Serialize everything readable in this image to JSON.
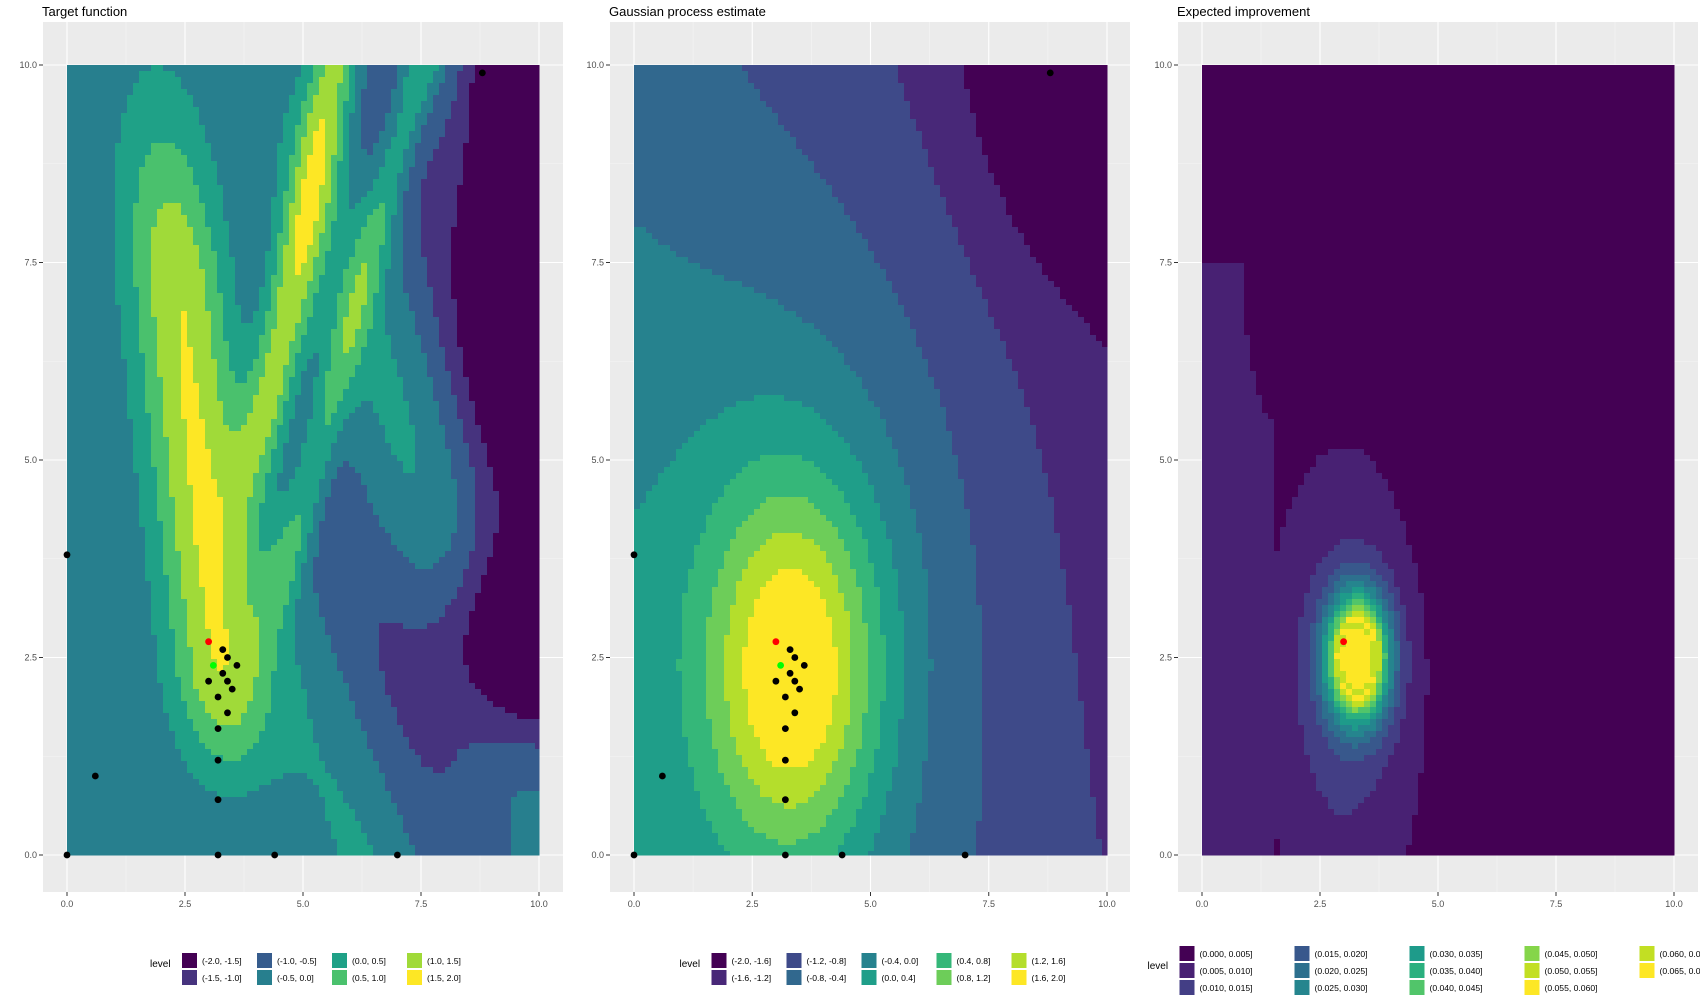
{
  "colors": {
    "panel_bg": "#EBEBEB",
    "grid_major": "#FFFFFF",
    "axis_text": "#4D4D4D",
    "point_black": "#000000",
    "point_red": "#FF0000",
    "point_green": "#00FF00"
  },
  "chart_data": [
    {
      "type": "contour",
      "title": "Target function",
      "xlim": [
        0,
        10
      ],
      "ylim": [
        0,
        10
      ],
      "x_ticks": [
        "0.0",
        "2.5",
        "5.0",
        "7.5",
        "10.0"
      ],
      "y_ticks": [
        "0.0",
        "2.5",
        "5.0",
        "7.5",
        "10.0"
      ],
      "legend_title": "level",
      "legend": [
        {
          "label": "(-2.0, -1.5]",
          "color": "#440154"
        },
        {
          "label": "(-1.5, -1.0]",
          "color": "#46337E"
        },
        {
          "label": "(-1.0, -0.5]",
          "color": "#365C8D"
        },
        {
          "label": "(-0.5, 0.0]",
          "color": "#277F8E"
        },
        {
          "label": "(0.0, 0.5]",
          "color": "#1FA187"
        },
        {
          "label": "(0.5, 1.0]",
          "color": "#4AC16D"
        },
        {
          "label": "(1.0, 1.5]",
          "color": "#A0DA39"
        },
        {
          "label": "(1.5, 2.0]",
          "color": "#FDE725"
        }
      ],
      "legend_rows": 2,
      "field": "target",
      "points": [
        [
          0,
          3.8
        ],
        [
          0.6,
          1.0
        ],
        [
          0,
          0
        ],
        [
          3.2,
          0
        ],
        [
          4.4,
          0
        ],
        [
          7.0,
          0
        ],
        [
          8.8,
          9.9
        ],
        [
          3.2,
          0.7
        ],
        [
          3.2,
          1.2
        ],
        [
          3.2,
          1.6
        ],
        [
          3.4,
          1.8
        ],
        [
          3.2,
          2.0
        ],
        [
          3.0,
          2.2
        ],
        [
          3.3,
          2.3
        ],
        [
          3.5,
          2.1
        ],
        [
          3.4,
          2.2
        ],
        [
          3.6,
          2.4
        ],
        [
          3.4,
          2.5
        ],
        [
          3.3,
          2.6
        ]
      ],
      "best_point": [
        3.0,
        2.7
      ],
      "current_point": [
        3.1,
        2.4
      ]
    },
    {
      "type": "contour",
      "title": "Gaussian process estimate",
      "xlim": [
        0,
        10
      ],
      "ylim": [
        0,
        10
      ],
      "x_ticks": [
        "0.0",
        "2.5",
        "5.0",
        "7.5",
        "10.0"
      ],
      "y_ticks": [
        "0.0",
        "2.5",
        "5.0",
        "7.5",
        "10.0"
      ],
      "legend_title": "level",
      "legend": [
        {
          "label": "(-2.0, -1.6]",
          "color": "#440154"
        },
        {
          "label": "(-1.6, -1.2]",
          "color": "#482878"
        },
        {
          "label": "(-1.2, -0.8]",
          "color": "#3E4A89"
        },
        {
          "label": "(-0.8, -0.4]",
          "color": "#31688E"
        },
        {
          "label": "(-0.4, 0.0]",
          "color": "#26828E"
        },
        {
          "label": "(0.0, 0.4]",
          "color": "#1F9E89"
        },
        {
          "label": "(0.4, 0.8]",
          "color": "#35B779"
        },
        {
          "label": "(0.8, 1.2]",
          "color": "#6DCD59"
        },
        {
          "label": "(1.2, 1.6]",
          "color": "#B4DE2C"
        },
        {
          "label": "(1.6, 2.0]",
          "color": "#FDE725"
        }
      ],
      "legend_rows": 2,
      "field": "gp",
      "points": [
        [
          0,
          3.8
        ],
        [
          0.6,
          1.0
        ],
        [
          0,
          0
        ],
        [
          3.2,
          0
        ],
        [
          4.4,
          0
        ],
        [
          7.0,
          0
        ],
        [
          8.8,
          9.9
        ],
        [
          3.2,
          0.7
        ],
        [
          3.2,
          1.2
        ],
        [
          3.2,
          1.6
        ],
        [
          3.4,
          1.8
        ],
        [
          3.2,
          2.0
        ],
        [
          3.0,
          2.2
        ],
        [
          3.3,
          2.3
        ],
        [
          3.5,
          2.1
        ],
        [
          3.4,
          2.2
        ],
        [
          3.6,
          2.4
        ],
        [
          3.4,
          2.5
        ],
        [
          3.3,
          2.6
        ]
      ],
      "best_point": [
        3.0,
        2.7
      ],
      "current_point": [
        3.1,
        2.4
      ]
    },
    {
      "type": "contour",
      "title": "Expected improvement",
      "xlim": [
        0,
        10
      ],
      "ylim": [
        0,
        10
      ],
      "x_ticks": [
        "0.0",
        "2.5",
        "5.0",
        "7.5",
        "10.0"
      ],
      "y_ticks": [
        "0.0",
        "2.5",
        "5.0",
        "7.5",
        "10.0"
      ],
      "legend_title": "level",
      "legend": [
        {
          "label": "(0.000, 0.005]",
          "color": "#440154"
        },
        {
          "label": "(0.005, 0.010]",
          "color": "#482173"
        },
        {
          "label": "(0.010, 0.015]",
          "color": "#433E85"
        },
        {
          "label": "(0.015, 0.020]",
          "color": "#38588C"
        },
        {
          "label": "(0.020, 0.025]",
          "color": "#2D708E"
        },
        {
          "label": "(0.025, 0.030]",
          "color": "#25858E"
        },
        {
          "label": "(0.030, 0.035]",
          "color": "#1E9B8A"
        },
        {
          "label": "(0.035, 0.040]",
          "color": "#2BB07F"
        },
        {
          "label": "(0.040, 0.045]",
          "color": "#51C56A"
        },
        {
          "label": "(0.045, 0.050]",
          "color": "#85D54A"
        },
        {
          "label": "(0.050, 0.055]",
          "color": "#C2DF23"
        },
        {
          "label": "(0.055, 0.060]",
          "color": "#FDE725"
        },
        {
          "label": "(0.060, 0.065]",
          "color": "#C2DF23"
        },
        {
          "label": "(0.065, 0.070]",
          "color": "#FDE725"
        }
      ],
      "legend_rows": 3,
      "field": "ei",
      "points": [],
      "best_point": [
        3.0,
        2.7
      ],
      "current_point": null
    }
  ]
}
